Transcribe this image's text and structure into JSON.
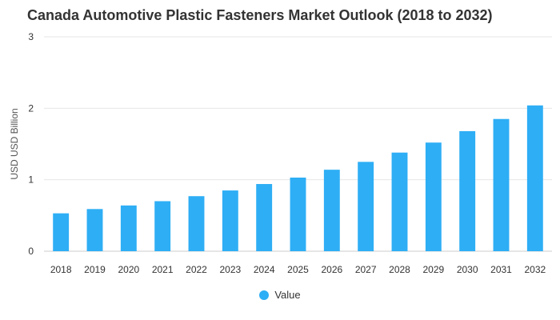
{
  "chart_data": {
    "type": "bar",
    "title": "Canada Automotive Plastic Fasteners Market Outlook (2018 to 2032)",
    "xlabel": "",
    "ylabel": "USD USD Billion",
    "ylim": [
      0,
      3
    ],
    "yticks": [
      "0",
      "1",
      "2",
      "3"
    ],
    "categories": [
      "2018",
      "2019",
      "2020",
      "2021",
      "2022",
      "2023",
      "2024",
      "2025",
      "2026",
      "2027",
      "2028",
      "2029",
      "2030",
      "2031",
      "2032"
    ],
    "series": [
      {
        "name": "Value",
        "color": "#2EAEF5",
        "values": [
          0.53,
          0.59,
          0.64,
          0.7,
          0.77,
          0.85,
          0.94,
          1.03,
          1.14,
          1.25,
          1.38,
          1.52,
          1.68,
          1.85,
          2.04
        ]
      }
    ],
    "grid": true,
    "legend_position": "bottom"
  }
}
